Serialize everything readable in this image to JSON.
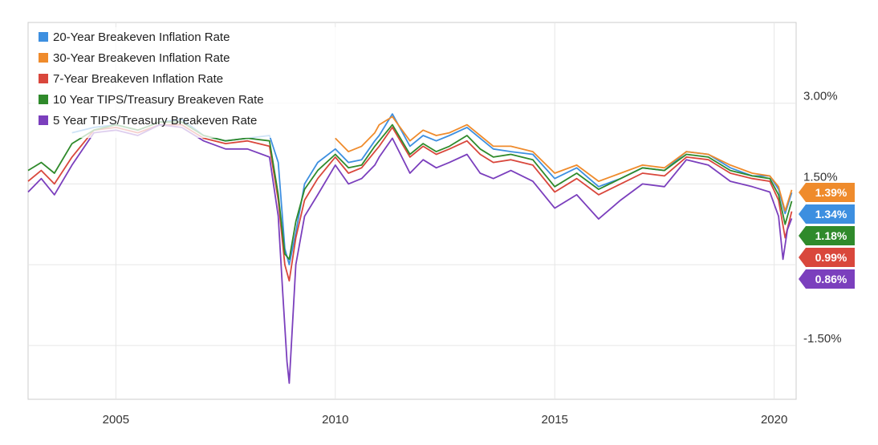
{
  "chart_data": {
    "type": "line",
    "title": "",
    "xlabel": "",
    "ylabel": "",
    "xlim": [
      2003.0,
      2020.5
    ],
    "ylim": [
      -2.5,
      4.5
    ],
    "grid": true,
    "legend_position": "top-left",
    "x_ticks": [
      {
        "value": 2005,
        "label": "2005"
      },
      {
        "value": 2010,
        "label": "2010"
      },
      {
        "value": 2015,
        "label": "2015"
      },
      {
        "value": 2020,
        "label": "2020"
      }
    ],
    "y_ticks": [
      {
        "value": 3.0,
        "label": "3.00%"
      },
      {
        "value": 1.5,
        "label": "1.50%"
      },
      {
        "value": -1.5,
        "label": "-1.50%"
      }
    ],
    "y_gridlines": [
      3.0,
      1.5,
      0.0,
      -1.5
    ],
    "series": [
      {
        "name": "20-Year Breakeven Inflation Rate",
        "color": "#3d8fe0",
        "last_label": "1.34%",
        "x": [
          2004.0,
          2004.5,
          2005.0,
          2005.5,
          2006.0,
          2006.5,
          2007.0,
          2007.5,
          2008.0,
          2008.5,
          2008.7,
          2008.85,
          2008.95,
          2009.1,
          2009.3,
          2009.6,
          2010.0,
          2010.3,
          2010.6,
          2010.9,
          2011.0,
          2011.3,
          2011.7,
          2012.0,
          2012.3,
          2012.6,
          2013.0,
          2013.3,
          2013.6,
          2014.0,
          2014.5,
          2015.0,
          2015.5,
          2016.0,
          2016.5,
          2017.0,
          2017.5,
          2018.0,
          2018.5,
          2019.0,
          2019.5,
          2019.9,
          2020.1,
          2020.25,
          2020.4
        ],
        "y": [
          2.45,
          2.55,
          2.6,
          2.5,
          2.65,
          2.7,
          2.4,
          2.3,
          2.35,
          2.4,
          1.9,
          0.3,
          0.0,
          0.6,
          1.5,
          1.9,
          2.15,
          1.9,
          1.95,
          2.3,
          2.4,
          2.8,
          2.2,
          2.4,
          2.3,
          2.4,
          2.55,
          2.35,
          2.15,
          2.1,
          2.05,
          1.6,
          1.8,
          1.45,
          1.6,
          1.8,
          1.75,
          2.1,
          2.05,
          1.8,
          1.65,
          1.65,
          1.4,
          0.95,
          1.34
        ]
      },
      {
        "name": "30-Year Breakeven Inflation Rate",
        "color": "#ef8b2c",
        "last_label": "1.39%",
        "x": [
          2010.0,
          2010.3,
          2010.6,
          2010.9,
          2011.0,
          2011.3,
          2011.7,
          2012.0,
          2012.3,
          2012.6,
          2013.0,
          2013.3,
          2013.6,
          2014.0,
          2014.5,
          2015.0,
          2015.5,
          2016.0,
          2016.5,
          2017.0,
          2017.5,
          2018.0,
          2018.5,
          2019.0,
          2019.5,
          2019.9,
          2020.1,
          2020.25,
          2020.4
        ],
        "y": [
          2.35,
          2.1,
          2.2,
          2.45,
          2.6,
          2.75,
          2.3,
          2.5,
          2.4,
          2.45,
          2.6,
          2.4,
          2.2,
          2.2,
          2.1,
          1.7,
          1.85,
          1.55,
          1.7,
          1.85,
          1.8,
          2.1,
          2.05,
          1.85,
          1.7,
          1.65,
          1.45,
          1.0,
          1.39
        ]
      },
      {
        "name": "7-Year Breakeven Inflation Rate",
        "color": "#d9473c",
        "last_label": "0.99%",
        "x": [
          2003.0,
          2003.3,
          2003.6,
          2004.0,
          2004.5,
          2005.0,
          2005.5,
          2006.0,
          2006.5,
          2007.0,
          2007.5,
          2008.0,
          2008.5,
          2008.7,
          2008.85,
          2008.95,
          2009.1,
          2009.3,
          2009.6,
          2010.0,
          2010.3,
          2010.6,
          2010.9,
          2011.0,
          2011.3,
          2011.7,
          2012.0,
          2012.3,
          2012.6,
          2013.0,
          2013.3,
          2013.6,
          2014.0,
          2014.5,
          2015.0,
          2015.5,
          2016.0,
          2016.5,
          2017.0,
          2017.5,
          2018.0,
          2018.5,
          2019.0,
          2019.5,
          2019.9,
          2020.1,
          2020.25,
          2020.4
        ],
        "y": [
          1.55,
          1.75,
          1.5,
          2.0,
          2.5,
          2.55,
          2.45,
          2.6,
          2.6,
          2.35,
          2.25,
          2.3,
          2.2,
          1.2,
          0.0,
          -0.3,
          0.5,
          1.2,
          1.6,
          2.0,
          1.7,
          1.8,
          2.1,
          2.2,
          2.55,
          2.0,
          2.2,
          2.05,
          2.15,
          2.3,
          2.05,
          1.9,
          1.95,
          1.85,
          1.35,
          1.6,
          1.3,
          1.5,
          1.7,
          1.65,
          2.0,
          1.95,
          1.7,
          1.6,
          1.55,
          1.2,
          0.5,
          0.99
        ]
      },
      {
        "name": "10 Year TIPS/Treasury Breakeven Rate",
        "color": "#2f8a2b",
        "last_label": "1.18%",
        "x": [
          2003.0,
          2003.3,
          2003.6,
          2004.0,
          2004.5,
          2005.0,
          2005.5,
          2006.0,
          2006.5,
          2007.0,
          2007.5,
          2008.0,
          2008.5,
          2008.7,
          2008.85,
          2008.95,
          2009.1,
          2009.3,
          2009.6,
          2010.0,
          2010.3,
          2010.6,
          2010.9,
          2011.0,
          2011.3,
          2011.7,
          2012.0,
          2012.3,
          2012.6,
          2013.0,
          2013.3,
          2013.6,
          2014.0,
          2014.5,
          2015.0,
          2015.5,
          2016.0,
          2016.5,
          2017.0,
          2017.5,
          2018.0,
          2018.5,
          2019.0,
          2019.5,
          2019.9,
          2020.1,
          2020.25,
          2020.4
        ],
        "y": [
          1.75,
          1.9,
          1.7,
          2.25,
          2.5,
          2.6,
          2.5,
          2.65,
          2.65,
          2.4,
          2.3,
          2.35,
          2.3,
          1.3,
          0.2,
          0.1,
          0.8,
          1.4,
          1.75,
          2.05,
          1.8,
          1.85,
          2.2,
          2.3,
          2.6,
          2.05,
          2.25,
          2.1,
          2.2,
          2.4,
          2.15,
          2.0,
          2.05,
          1.95,
          1.45,
          1.7,
          1.4,
          1.6,
          1.8,
          1.75,
          2.05,
          2.0,
          1.75,
          1.65,
          1.6,
          1.3,
          0.75,
          1.18
        ]
      },
      {
        "name": "5 Year TIPS/Treasury Breakeven Rate",
        "color": "#7b3fbd",
        "last_label": "0.86%",
        "x": [
          2003.0,
          2003.3,
          2003.6,
          2004.0,
          2004.5,
          2005.0,
          2005.5,
          2006.0,
          2006.5,
          2007.0,
          2007.5,
          2008.0,
          2008.5,
          2008.7,
          2008.8,
          2008.9,
          2008.95,
          2009.1,
          2009.3,
          2009.6,
          2010.0,
          2010.3,
          2010.6,
          2010.9,
          2011.0,
          2011.3,
          2011.7,
          2012.0,
          2012.3,
          2012.6,
          2013.0,
          2013.3,
          2013.6,
          2014.0,
          2014.5,
          2015.0,
          2015.5,
          2016.0,
          2016.5,
          2017.0,
          2017.5,
          2018.0,
          2018.5,
          2019.0,
          2019.5,
          2019.9,
          2020.1,
          2020.2,
          2020.3,
          2020.4
        ],
        "y": [
          1.35,
          1.6,
          1.3,
          1.85,
          2.45,
          2.5,
          2.4,
          2.6,
          2.55,
          2.3,
          2.15,
          2.15,
          2.0,
          0.9,
          -0.5,
          -1.8,
          -2.2,
          0.0,
          0.9,
          1.3,
          1.85,
          1.5,
          1.6,
          1.85,
          2.0,
          2.35,
          1.7,
          1.95,
          1.8,
          1.9,
          2.05,
          1.7,
          1.6,
          1.75,
          1.55,
          1.05,
          1.3,
          0.85,
          1.2,
          1.5,
          1.45,
          1.95,
          1.85,
          1.55,
          1.45,
          1.35,
          0.9,
          0.1,
          0.65,
          0.86
        ]
      }
    ]
  }
}
